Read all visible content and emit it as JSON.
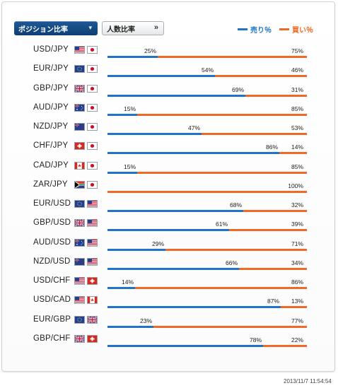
{
  "tabs": {
    "active_label": "ポジション比率",
    "active_arrow": "▾",
    "inactive_label": "人数比率",
    "inactive_arrow": "»"
  },
  "legend": {
    "sell_label": "売り％",
    "buy_label": "買い％",
    "sell_color": "#1f74c8",
    "buy_color": "#ee6a27"
  },
  "rows": [
    {
      "pair": "USD/JPY",
      "flags": [
        "us",
        "jp"
      ],
      "sell_pct": "25%",
      "buy_pct": "75%",
      "sell": 25
    },
    {
      "pair": "EUR/JPY",
      "flags": [
        "eu",
        "jp"
      ],
      "sell_pct": "54%",
      "buy_pct": "46%",
      "sell": 54
    },
    {
      "pair": "GBP/JPY",
      "flags": [
        "gb",
        "jp"
      ],
      "sell_pct": "69%",
      "buy_pct": "31%",
      "sell": 69
    },
    {
      "pair": "AUD/JPY",
      "flags": [
        "au",
        "jp"
      ],
      "sell_pct": "15%",
      "buy_pct": "85%",
      "sell": 15
    },
    {
      "pair": "NZD/JPY",
      "flags": [
        "nz",
        "jp"
      ],
      "sell_pct": "47%",
      "buy_pct": "53%",
      "sell": 47
    },
    {
      "pair": "CHF/JPY",
      "flags": [
        "ch",
        "jp"
      ],
      "sell_pct": "86%",
      "buy_pct": "14%",
      "sell": 86
    },
    {
      "pair": "CAD/JPY",
      "flags": [
        "ca",
        "jp"
      ],
      "sell_pct": "15%",
      "buy_pct": "85%",
      "sell": 15
    },
    {
      "pair": "ZAR/JPY",
      "flags": [
        "za",
        "jp"
      ],
      "sell_pct": "",
      "buy_pct": "100%",
      "sell": 0
    },
    {
      "pair": "EUR/USD",
      "flags": [
        "eu",
        "us"
      ],
      "sell_pct": "68%",
      "buy_pct": "32%",
      "sell": 68
    },
    {
      "pair": "GBP/USD",
      "flags": [
        "gb",
        "us"
      ],
      "sell_pct": "61%",
      "buy_pct": "39%",
      "sell": 61
    },
    {
      "pair": "AUD/USD",
      "flags": [
        "au",
        "us"
      ],
      "sell_pct": "29%",
      "buy_pct": "71%",
      "sell": 29
    },
    {
      "pair": "NZD/USD",
      "flags": [
        "nz",
        "us"
      ],
      "sell_pct": "66%",
      "buy_pct": "34%",
      "sell": 66
    },
    {
      "pair": "USD/CHF",
      "flags": [
        "us",
        "ch"
      ],
      "sell_pct": "14%",
      "buy_pct": "86%",
      "sell": 14
    },
    {
      "pair": "USD/CAD",
      "flags": [
        "us",
        "ca"
      ],
      "sell_pct": "87%",
      "buy_pct": "13%",
      "sell": 87
    },
    {
      "pair": "EUR/GBP",
      "flags": [
        "eu",
        "gb"
      ],
      "sell_pct": "23%",
      "buy_pct": "77%",
      "sell": 23
    },
    {
      "pair": "GBP/CHF",
      "flags": [
        "gb",
        "ch"
      ],
      "sell_pct": "78%",
      "buy_pct": "22%",
      "sell": 78
    }
  ],
  "timestamp": "2013/11/7 11:54:54"
}
